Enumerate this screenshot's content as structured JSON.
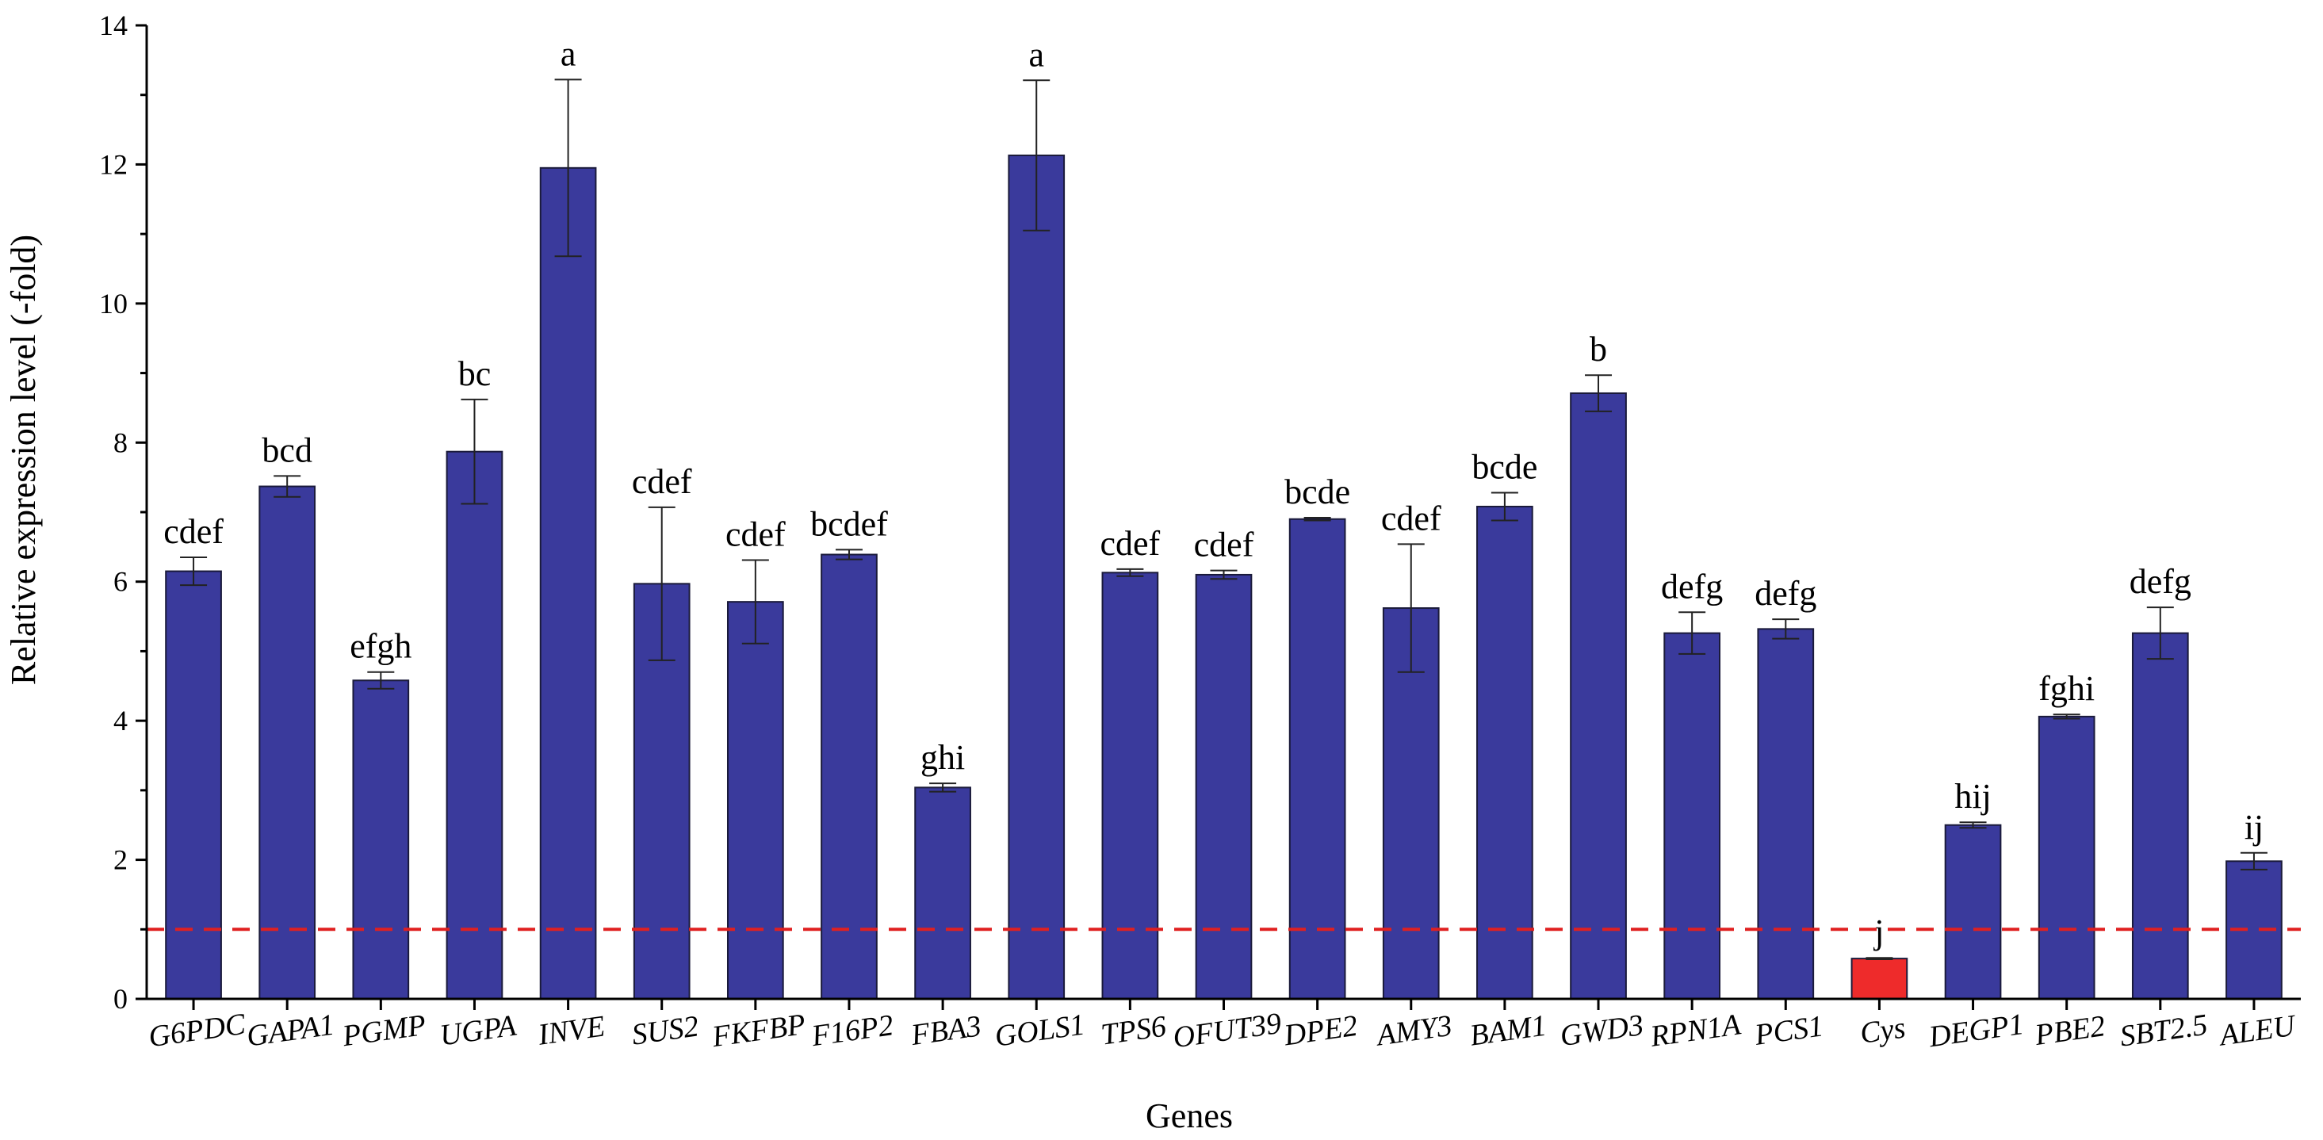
{
  "chart_data": {
    "type": "bar",
    "xlabel": "Genes",
    "ylabel": "Relative expression level (-fold)",
    "ylim": [
      0,
      14
    ],
    "yticks": [
      0,
      2,
      4,
      6,
      8,
      10,
      12,
      14
    ],
    "reference_line": 1,
    "categories": [
      "G6PDC",
      "GAPA1",
      "PGMP",
      "UGPA",
      "INVE",
      "SUS2",
      "FKFBP",
      "F16P2",
      "FBA3",
      "GOLS1",
      "TPS6",
      "OFUT39",
      "DPE2",
      "AMY3",
      "BAM1",
      "GWD3",
      "RPN1A",
      "PCS1",
      "Cys",
      "DEGP1",
      "PBE2",
      "SBT2.5",
      "ALEU"
    ],
    "values": [
      6.15,
      7.37,
      4.58,
      7.87,
      11.95,
      5.97,
      5.71,
      6.39,
      3.04,
      12.13,
      6.13,
      6.1,
      6.9,
      5.62,
      7.08,
      8.71,
      5.26,
      5.32,
      0.58,
      2.5,
      4.06,
      5.26,
      1.98
    ],
    "errors": [
      0.2,
      0.15,
      0.12,
      0.75,
      1.27,
      1.1,
      0.6,
      0.07,
      0.06,
      1.08,
      0.05,
      0.06,
      0.02,
      0.92,
      0.2,
      0.26,
      0.3,
      0.14,
      0.01,
      0.04,
      0.03,
      0.37,
      0.12
    ],
    "significance": [
      "cdef",
      "bcd",
      "efgh",
      "bc",
      "a",
      "cdef",
      "cdef",
      "bcdef",
      "ghi",
      "a",
      "cdef",
      "cdef",
      "bcde",
      "cdef",
      "bcde",
      "b",
      "defg",
      "defg",
      "j",
      "hij",
      "fghi",
      "defg",
      "ij"
    ],
    "highlight_category": "Cys",
    "colors": {
      "bar": "#3a3a9c",
      "highlight": "#ee2b2b",
      "reference_line": "#e02020",
      "axis": "#000000"
    }
  }
}
